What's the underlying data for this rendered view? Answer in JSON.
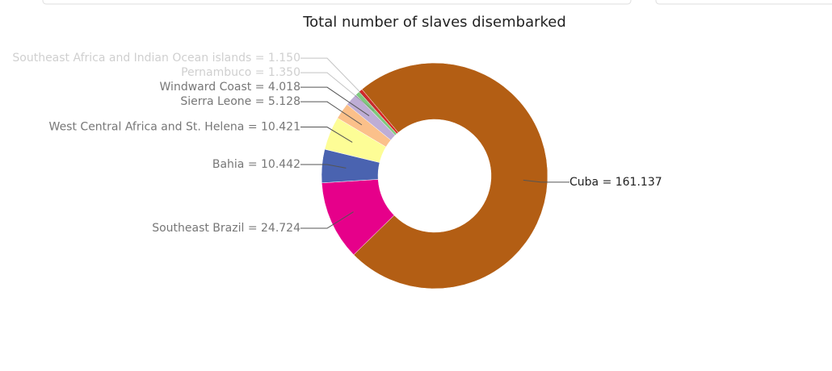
{
  "chart_data": {
    "type": "pie",
    "title": "Total number of slaves disembarked",
    "values": [
      161137,
      24724,
      10442,
      10421,
      5128,
      4018,
      1350,
      1150
    ],
    "value_labels": [
      "Cuba = 161.137",
      "Southeast Brazil = 24.724",
      "Bahia = 10.442",
      "West Central Africa and St. Helena = 10.421",
      "Sierra Leone = 5.128",
      "Windward Coast = 4.018",
      "Pernambuco = 1.350",
      "Southeast Africa and Indian Ocean islands = 1.150"
    ],
    "colors": [
      "#b35e14",
      "#e6008a",
      "#4a63b0",
      "#fdfd96",
      "#fbc08a",
      "#beadd5",
      "#7fc97f",
      "#d62728"
    ]
  }
}
